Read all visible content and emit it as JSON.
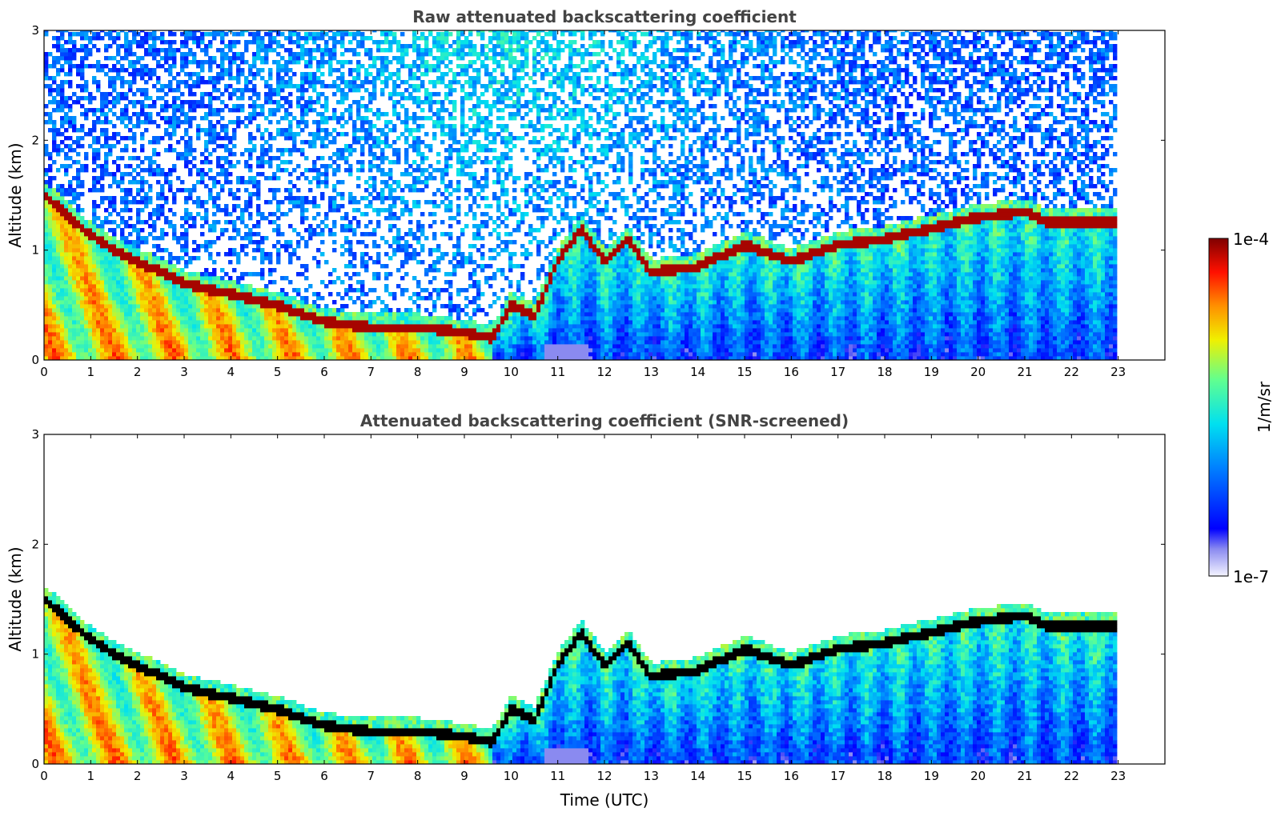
{
  "figure": {
    "colorbar": {
      "top_label": "1e-4",
      "bottom_label": "1e-7",
      "unit_label": "1/m/sr",
      "colormap": "jet-like (white → blue → cyan → green → yellow → orange → red → dark red)",
      "scale": "log"
    }
  },
  "chart_data": [
    {
      "type": "heatmap",
      "title": "Raw attenuated backscattering coefficient",
      "xlabel": "",
      "ylabel": "Altitude (km)",
      "xlim": [
        0,
        24
      ],
      "ylim": [
        0,
        3
      ],
      "xticks": [
        "0",
        "1",
        "2",
        "3",
        "4",
        "5",
        "6",
        "7",
        "8",
        "9",
        "10",
        "11",
        "12",
        "13",
        "14",
        "15",
        "16",
        "17",
        "18",
        "19",
        "20",
        "21",
        "22",
        "23"
      ],
      "yticks": [
        "0",
        "1",
        "2",
        "3"
      ],
      "data_extent_x": [
        0,
        22.9
      ],
      "layer_top_km": {
        "x": [
          0,
          0.3,
          0.8,
          1.5,
          2.5,
          3,
          4,
          5,
          6,
          7,
          8,
          9,
          9.6,
          10,
          10.5,
          11,
          11.5,
          12,
          12.5,
          13,
          14,
          15,
          16,
          17,
          18,
          19,
          20,
          21,
          21.5,
          22.9
        ],
        "y": [
          1.5,
          1.4,
          1.2,
          1.0,
          0.8,
          0.7,
          0.6,
          0.5,
          0.35,
          0.3,
          0.3,
          0.25,
          0.2,
          0.5,
          0.4,
          0.9,
          1.2,
          0.9,
          1.1,
          0.8,
          0.85,
          1.05,
          0.9,
          1.05,
          1.1,
          1.2,
          1.3,
          1.35,
          1.25,
          1.25
        ]
      },
      "colorbar_range": [
        "1e-7",
        "1e-4"
      ]
    },
    {
      "type": "heatmap",
      "title": "Attenuated backscattering coefficient (SNR-screened)",
      "xlabel": "Time (UTC)",
      "ylabel": "Altitude (km)",
      "xlim": [
        0,
        24
      ],
      "ylim": [
        0,
        3
      ],
      "xticks": [
        "0",
        "1",
        "2",
        "3",
        "4",
        "5",
        "6",
        "7",
        "8",
        "9",
        "10",
        "11",
        "12",
        "13",
        "14",
        "15",
        "16",
        "17",
        "18",
        "19",
        "20",
        "21",
        "22",
        "23"
      ],
      "yticks": [
        "0",
        "1",
        "2",
        "3"
      ],
      "data_extent_x": [
        0,
        22.9
      ],
      "layer_top_km": {
        "x": [
          0,
          0.3,
          0.8,
          1.5,
          2.5,
          3,
          4,
          5,
          6,
          7,
          8,
          9,
          9.6,
          10,
          10.5,
          11,
          11.5,
          12,
          12.5,
          13,
          14,
          15,
          16,
          17,
          18,
          19,
          20,
          21,
          21.5,
          22.9
        ],
        "y": [
          1.5,
          1.4,
          1.2,
          1.0,
          0.8,
          0.7,
          0.6,
          0.5,
          0.35,
          0.3,
          0.3,
          0.25,
          0.2,
          0.5,
          0.4,
          0.9,
          1.2,
          0.9,
          1.1,
          0.8,
          0.85,
          1.05,
          0.9,
          1.05,
          1.1,
          1.2,
          1.3,
          1.35,
          1.25,
          1.25
        ]
      },
      "colorbar_range": [
        "1e-7",
        "1e-4"
      ]
    }
  ]
}
